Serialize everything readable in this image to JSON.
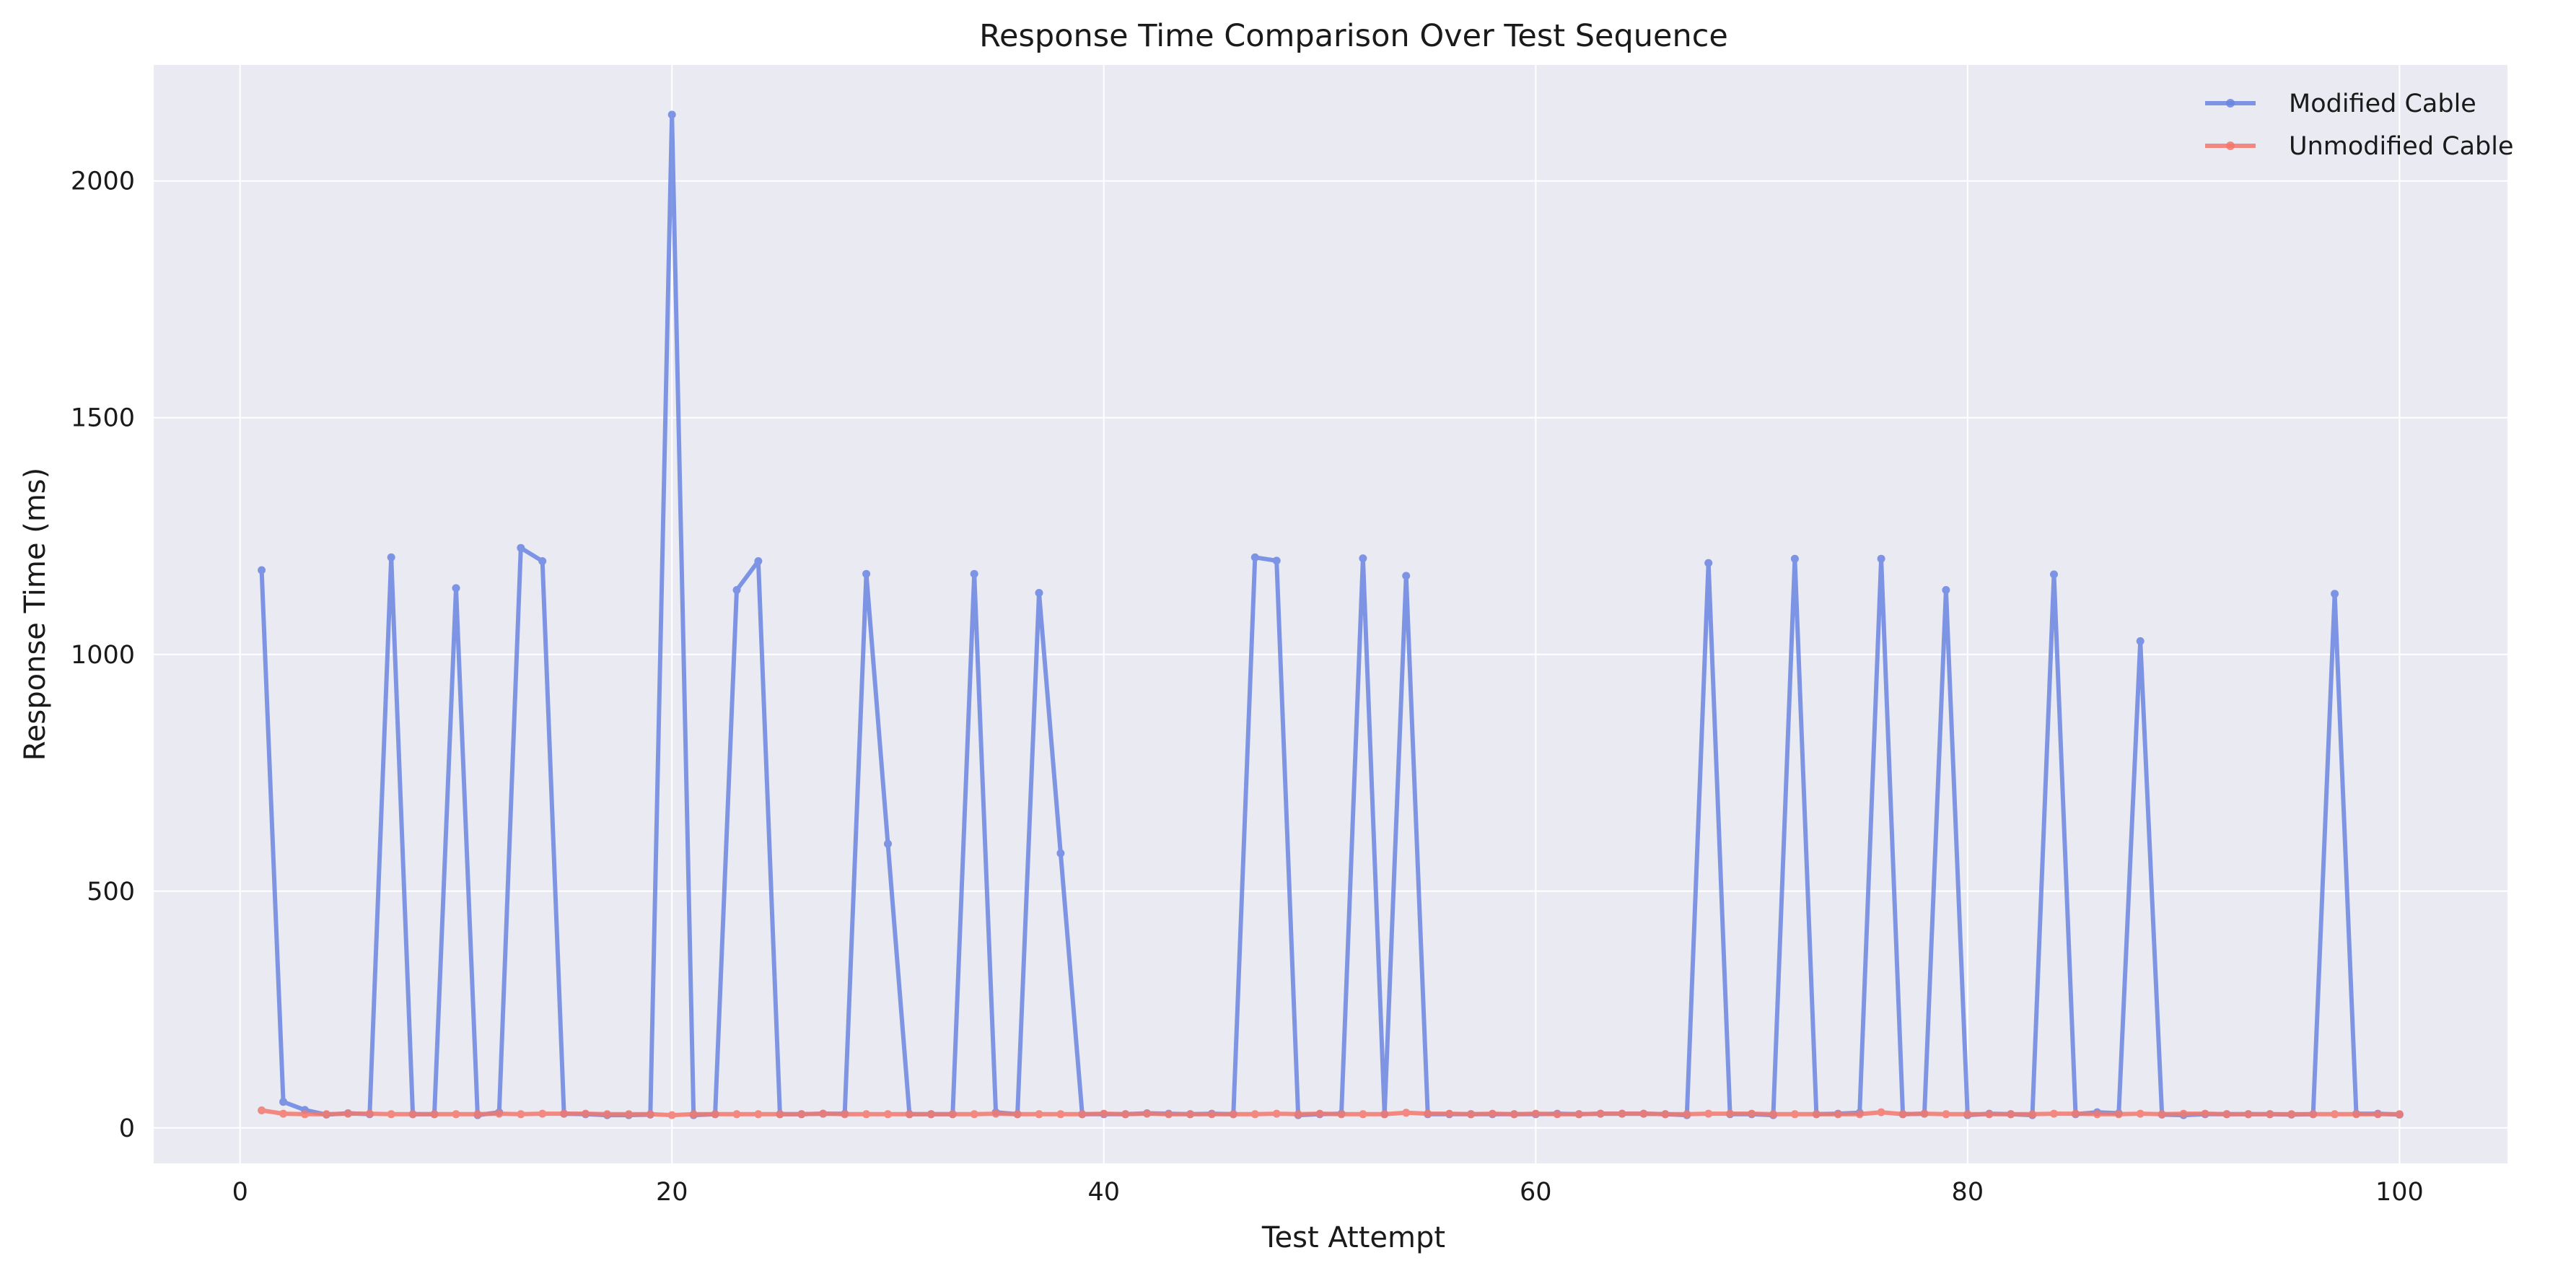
{
  "chart_data": {
    "type": "line",
    "title": "Response Time Comparison Over Test Sequence",
    "xlabel": "Test Attempt",
    "ylabel": "Response Time (ms)",
    "xlim": [
      -4,
      105
    ],
    "ylim": [
      -75,
      2245
    ],
    "xticks": [
      0,
      20,
      40,
      60,
      80,
      100
    ],
    "yticks": [
      0,
      500,
      1000,
      1500,
      2000
    ],
    "grid": true,
    "legend_position": "top-right",
    "background": "#eaeaf2",
    "x": [
      1,
      2,
      3,
      4,
      5,
      6,
      7,
      8,
      9,
      10,
      11,
      12,
      13,
      14,
      15,
      16,
      17,
      18,
      19,
      20,
      21,
      22,
      23,
      24,
      25,
      26,
      27,
      28,
      29,
      30,
      31,
      32,
      33,
      34,
      35,
      36,
      37,
      38,
      39,
      40,
      41,
      42,
      43,
      44,
      45,
      46,
      47,
      48,
      49,
      50,
      51,
      52,
      53,
      54,
      55,
      56,
      57,
      58,
      59,
      60,
      61,
      62,
      63,
      64,
      65,
      66,
      67,
      68,
      69,
      70,
      71,
      72,
      73,
      74,
      75,
      76,
      77,
      78,
      79,
      80,
      81,
      82,
      83,
      84,
      85,
      86,
      87,
      88,
      89,
      90,
      91,
      92,
      93,
      94,
      95,
      96,
      97,
      98,
      99,
      100
    ],
    "series": [
      {
        "name": "Modified Cable",
        "color": "#6b86e2",
        "values": [
          1178,
          55,
          38,
          28,
          31,
          29,
          1205,
          29,
          29,
          1140,
          27,
          33,
          1225,
          1197,
          30,
          29,
          27,
          27,
          28,
          2140,
          27,
          29,
          1136,
          1197,
          29,
          29,
          30,
          30,
          1170,
          600,
          29,
          29,
          29,
          1170,
          33,
          29,
          1130,
          580,
          29,
          29,
          29,
          31,
          30,
          29,
          30,
          29,
          1205,
          1198,
          27,
          29,
          30,
          1203,
          29,
          1166,
          29,
          29,
          29,
          29,
          29,
          29,
          30,
          29,
          30,
          30,
          30,
          29,
          27,
          1193,
          29,
          29,
          27,
          1202,
          29,
          30,
          32,
          1202,
          29,
          30,
          1136,
          27,
          30,
          29,
          27,
          1169,
          29,
          33,
          31,
          1028,
          28,
          27,
          29,
          29,
          29,
          29,
          28,
          29,
          1128,
          30,
          30,
          28
        ]
      },
      {
        "name": "Unmodified Cable",
        "color": "#f4786c",
        "values": [
          37,
          30,
          29,
          29,
          30,
          30,
          29,
          29,
          29,
          29,
          29,
          30,
          29,
          30,
          30,
          30,
          29,
          29,
          29,
          27,
          29,
          29,
          29,
          29,
          29,
          29,
          30,
          29,
          29,
          29,
          29,
          29,
          29,
          29,
          30,
          29,
          29,
          29,
          29,
          30,
          29,
          30,
          29,
          29,
          29,
          29,
          29,
          30,
          29,
          30,
          29,
          29,
          29,
          32,
          30,
          30,
          29,
          30,
          29,
          30,
          29,
          29,
          30,
          30,
          30,
          29,
          29,
          30,
          30,
          30,
          29,
          29,
          29,
          29,
          29,
          33,
          29,
          30,
          29,
          29,
          29,
          29,
          29,
          30,
          30,
          29,
          29,
          30,
          29,
          30,
          30,
          29,
          29,
          29,
          29,
          29,
          29,
          29,
          29,
          29
        ]
      }
    ]
  }
}
